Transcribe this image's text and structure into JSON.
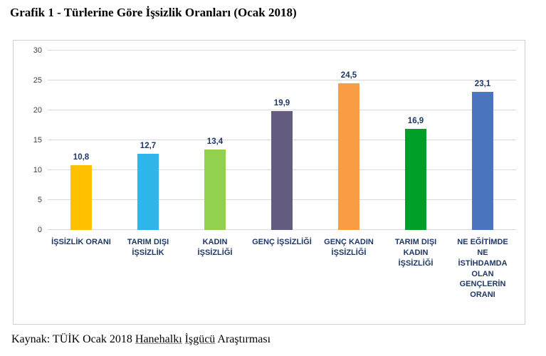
{
  "title": "Grafik 1 - Türlerine Göre İşsizlik Oranları (Ocak 2018)",
  "footer": {
    "parts": [
      {
        "text": "Kaynak: TÜİK Ocak 2018 ",
        "underline": false
      },
      {
        "text": "Hanehalkı",
        "underline": true
      },
      {
        "text": " ",
        "underline": false
      },
      {
        "text": "İşgücü",
        "underline": true
      },
      {
        "text": " Araştırması",
        "underline": false
      }
    ]
  },
  "chart_data": {
    "type": "bar",
    "title": "Grafik 1 - Türlerine Göre İşsizlik Oranları (Ocak 2018)",
    "categories": [
      "İŞSİZLİK ORANI",
      "TARIM DIŞI İŞSİZLİK",
      "KADIN İŞSİZLİĞİ",
      "GENÇ İŞSİZLİĞİ",
      "GENÇ KADIN İŞSİZLİĞİ",
      "TARIM DIŞI KADIN İŞSİZLİĞİ",
      "NE EĞİTİMDE NE İSTİHDAMDA OLAN GENÇLERİN ORANI"
    ],
    "values": [
      10.8,
      12.7,
      13.4,
      19.9,
      24.5,
      16.9,
      23.1
    ],
    "value_labels": [
      "10,8",
      "12,7",
      "13,4",
      "19,9",
      "24,5",
      "16,9",
      "23,1"
    ],
    "bar_colors": [
      "#ffc000",
      "#2eb6ea",
      "#92d050",
      "#635c7e",
      "#f99d45",
      "#00a028",
      "#4a74be"
    ],
    "xlabel": "",
    "ylabel": "",
    "ylim": [
      0,
      30
    ],
    "yticks": [
      0,
      5,
      10,
      15,
      20,
      25,
      30
    ],
    "grid": true,
    "legend": "none",
    "label_color": "#1f3864",
    "gridline_color": "#d9d9d9"
  }
}
